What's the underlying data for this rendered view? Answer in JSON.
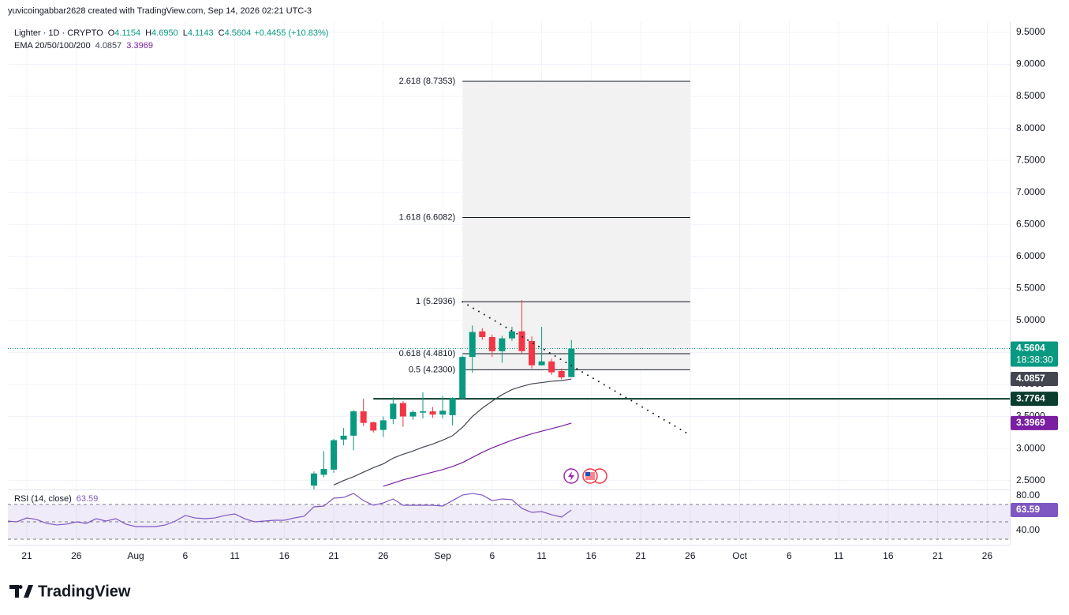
{
  "header": "yuvicoingabbar2628 created with TradingView.com, Sep 14, 2026 02:21 UTC-3",
  "brand": "TradingView",
  "chart_data": {
    "type": "candlestick",
    "symbol": "Lighter · 1D · CRYPTO",
    "legend": [
      {
        "key": "O",
        "text": "4.1154"
      },
      {
        "key": "H",
        "text": "4.6950"
      },
      {
        "key": "L",
        "text": "4.1143"
      },
      {
        "key": "C",
        "text": "4.5604"
      }
    ],
    "change": "+0.4455 (+10.83%)",
    "up_color": "#089981",
    "down_color": "#f23645",
    "x": [
      "2026-07-19",
      "2026-07-20",
      "2026-07-21",
      "2026-07-22",
      "2026-07-23",
      "2026-07-24",
      "2026-07-25",
      "2026-07-26",
      "2026-07-27",
      "2026-07-28",
      "2026-07-29",
      "2026-07-30",
      "2026-07-31",
      "2026-08-01",
      "2026-08-02",
      "2026-08-03",
      "2026-08-04",
      "2026-08-05",
      "2026-08-06",
      "2026-08-07",
      "2026-08-08",
      "2026-08-09",
      "2026-08-10",
      "2026-08-11",
      "2026-08-12",
      "2026-08-13",
      "2026-08-14",
      "2026-08-15",
      "2026-08-16",
      "2026-08-17",
      "2026-08-18",
      "2026-08-19",
      "2026-08-20",
      "2026-08-21",
      "2026-08-22",
      "2026-08-23",
      "2026-08-24",
      "2026-08-25",
      "2026-08-26",
      "2026-08-27",
      "2026-08-28",
      "2026-08-29",
      "2026-08-30",
      "2026-08-31",
      "2026-09-01",
      "2026-09-02",
      "2026-09-03",
      "2026-09-04",
      "2026-09-05",
      "2026-09-06",
      "2026-09-07",
      "2026-09-08",
      "2026-09-09",
      "2026-09-10",
      "2026-09-11",
      "2026-09-12",
      "2026-09-13",
      "2026-09-14"
    ],
    "xlim": [
      "2026-07-19",
      "2026-10-28"
    ],
    "xticks": [
      {
        "value": "2026-07-21",
        "label": "21"
      },
      {
        "value": "2026-07-26",
        "label": "26"
      },
      {
        "value": "2026-08-01",
        "label": "Aug"
      },
      {
        "value": "2026-08-06",
        "label": "6"
      },
      {
        "value": "2026-08-11",
        "label": "11"
      },
      {
        "value": "2026-08-16",
        "label": "16"
      },
      {
        "value": "2026-08-21",
        "label": "21"
      },
      {
        "value": "2026-08-26",
        "label": "26"
      },
      {
        "value": "2026-09-01",
        "label": "Sep"
      },
      {
        "value": "2026-09-06",
        "label": "6"
      },
      {
        "value": "2026-09-11",
        "label": "11"
      },
      {
        "value": "2026-09-16",
        "label": "16"
      },
      {
        "value": "2026-09-21",
        "label": "21"
      },
      {
        "value": "2026-09-26",
        "label": "26"
      },
      {
        "value": "2026-10-01",
        "label": "Oct"
      },
      {
        "value": "2026-10-06",
        "label": "6"
      },
      {
        "value": "2026-10-11",
        "label": "11"
      },
      {
        "value": "2026-10-16",
        "label": "16"
      },
      {
        "value": "2026-10-21",
        "label": "21"
      },
      {
        "value": "2026-10-26",
        "label": "26"
      }
    ],
    "ylim": [
      2.36,
      9.66
    ],
    "yticks": [
      {
        "value": 2.5,
        "label": "2.5000"
      },
      {
        "value": 3,
        "label": "3.0000"
      },
      {
        "value": 3.5,
        "label": "3.5000"
      },
      {
        "value": 4,
        "label": "4.0000"
      },
      {
        "value": 4.5,
        "label": "4.5000"
      },
      {
        "value": 5,
        "label": "5.0000"
      },
      {
        "value": 5.5,
        "label": "5.5000"
      },
      {
        "value": 6,
        "label": "6.0000"
      },
      {
        "value": 6.5,
        "label": "6.5000"
      },
      {
        "value": 7,
        "label": "7.0000"
      },
      {
        "value": 7.5,
        "label": "7.5000"
      },
      {
        "value": 8,
        "label": "8.0000"
      },
      {
        "value": 8.5,
        "label": "8.5000"
      },
      {
        "value": 9,
        "label": "9.0000"
      },
      {
        "value": 9.5,
        "label": "9.5000"
      }
    ],
    "grid": true,
    "open": [
      null,
      null,
      null,
      null,
      null,
      null,
      null,
      null,
      null,
      null,
      null,
      null,
      null,
      null,
      null,
      null,
      null,
      null,
      null,
      null,
      null,
      null,
      null,
      null,
      null,
      null,
      null,
      null,
      null,
      null,
      null,
      2.42,
      2.59,
      2.67,
      3.14,
      3.2,
      3.58,
      3.41,
      3.29,
      3.46,
      3.71,
      3.5,
      3.56,
      3.58,
      3.53,
      3.52,
      3.78,
      4.43,
      4.83,
      4.74,
      4.52,
      4.72,
      4.83,
      4.68,
      4.3,
      4.36,
      4.21,
      4.1154
    ],
    "high": [
      null,
      null,
      null,
      null,
      null,
      null,
      null,
      null,
      null,
      null,
      null,
      null,
      null,
      null,
      null,
      null,
      null,
      null,
      null,
      null,
      null,
      null,
      null,
      null,
      null,
      null,
      null,
      null,
      null,
      null,
      null,
      2.64,
      2.96,
      3.15,
      3.32,
      3.6,
      3.78,
      3.42,
      3.5,
      3.8,
      3.74,
      3.6,
      3.88,
      3.65,
      3.82,
      3.8,
      4.45,
      4.92,
      4.88,
      4.78,
      4.76,
      4.9,
      5.32,
      4.75,
      4.9,
      4.4,
      4.25,
      4.695
    ],
    "low": [
      null,
      null,
      null,
      null,
      null,
      null,
      null,
      null,
      null,
      null,
      null,
      null,
      null,
      null,
      null,
      null,
      null,
      null,
      null,
      null,
      null,
      null,
      null,
      null,
      null,
      null,
      null,
      null,
      null,
      null,
      null,
      2.36,
      2.55,
      2.62,
      3.05,
      2.97,
      3.35,
      3.25,
      3.18,
      3.38,
      3.34,
      3.45,
      3.47,
      3.48,
      3.47,
      3.36,
      3.77,
      4.18,
      4.7,
      4.43,
      4.34,
      4.68,
      4.48,
      4.25,
      4.3,
      4.15,
      4.08,
      4.1143
    ],
    "close": [
      null,
      null,
      null,
      null,
      null,
      null,
      null,
      null,
      null,
      null,
      null,
      null,
      null,
      null,
      null,
      null,
      null,
      null,
      null,
      null,
      null,
      null,
      null,
      null,
      null,
      null,
      null,
      null,
      null,
      null,
      null,
      2.61,
      2.68,
      3.13,
      3.2,
      3.58,
      3.4,
      3.28,
      3.44,
      3.7,
      3.5,
      3.57,
      3.58,
      3.53,
      3.59,
      3.79,
      4.43,
      4.82,
      4.74,
      4.52,
      4.72,
      4.83,
      4.52,
      4.3,
      4.36,
      4.19,
      4.11,
      4.5604
    ],
    "indicator_name": "EMA 20/50/100/200",
    "series": [
      {
        "color": "#434651",
        "values": [
          null,
          null,
          null,
          null,
          null,
          null,
          null,
          null,
          null,
          null,
          null,
          null,
          null,
          null,
          null,
          null,
          null,
          null,
          null,
          null,
          null,
          null,
          null,
          null,
          null,
          null,
          null,
          null,
          null,
          null,
          null,
          null,
          null,
          2.43,
          2.5,
          2.56,
          2.63,
          2.7,
          2.76,
          2.85,
          2.91,
          2.96,
          3.02,
          3.07,
          3.13,
          3.2,
          3.33,
          3.5,
          3.63,
          3.74,
          3.84,
          3.92,
          3.97,
          4.01,
          4.03,
          4.05,
          4.06,
          4.0857
        ]
      },
      {
        "color": "#7b1fa2",
        "values": [
          null,
          null,
          null,
          null,
          null,
          null,
          null,
          null,
          null,
          null,
          null,
          null,
          null,
          null,
          null,
          null,
          null,
          null,
          null,
          null,
          null,
          null,
          null,
          null,
          null,
          null,
          null,
          null,
          null,
          null,
          null,
          null,
          null,
          null,
          null,
          null,
          null,
          null,
          2.41,
          2.46,
          2.51,
          2.55,
          2.59,
          2.63,
          2.67,
          2.72,
          2.78,
          2.86,
          2.94,
          3.01,
          3.07,
          3.13,
          3.18,
          3.23,
          3.27,
          3.31,
          3.35,
          3.3969
        ]
      }
    ],
    "fib": {
      "start": "2026-09-03",
      "end": "2026-09-26",
      "levels": [
        {
          "value": 8.7353,
          "label": "2.618 (8.7353)"
        },
        {
          "value": 6.6082,
          "label": "1.618 (6.6082)"
        },
        {
          "value": 5.2936,
          "label": "1 (5.2936)"
        },
        {
          "value": 4.481,
          "label": "0.618 (4.4810)"
        },
        {
          "value": 4.23,
          "label": "0.5 (4.2300)"
        }
      ]
    },
    "hline": {
      "value": 3.7764,
      "start": "2026-08-25",
      "color": "#0b3d2e"
    },
    "trendline": {
      "x": [
        "2026-09-03",
        "2026-09-26"
      ],
      "values": [
        5.29,
        3.21
      ]
    },
    "countdown": "18:38:30",
    "rsi": {
      "label": "RSI (14, close)",
      "color": "#7e57c2",
      "values": [
        50.9,
        50,
        54.5,
        52.7,
        48.2,
        46.4,
        47.3,
        50,
        48.2,
        53.6,
        50.9,
        53.6,
        47.3,
        44.5,
        44.5,
        44.5,
        46.4,
        50.9,
        57.3,
        54.5,
        53.6,
        54.5,
        57.3,
        59.1,
        53.6,
        50,
        50.9,
        51.8,
        51.8,
        54.5,
        56.4,
        67.3,
        68.2,
        77.3,
        78.2,
        82.7,
        74.5,
        69.1,
        71.8,
        76.4,
        69.1,
        69.1,
        69.1,
        69.1,
        68.2,
        74.5,
        80.9,
        82.7,
        80.9,
        74.5,
        76.4,
        75.5,
        65.5,
        60.9,
        61.8,
        58.2,
        55.5,
        63.59
      ],
      "ylim": [
        24.5,
        86.4
      ],
      "yticks": [
        {
          "value": 80,
          "label": "80.00"
        },
        {
          "value": 40,
          "label": "40.00"
        }
      ],
      "levels": [
        70,
        50,
        30
      ]
    }
  }
}
